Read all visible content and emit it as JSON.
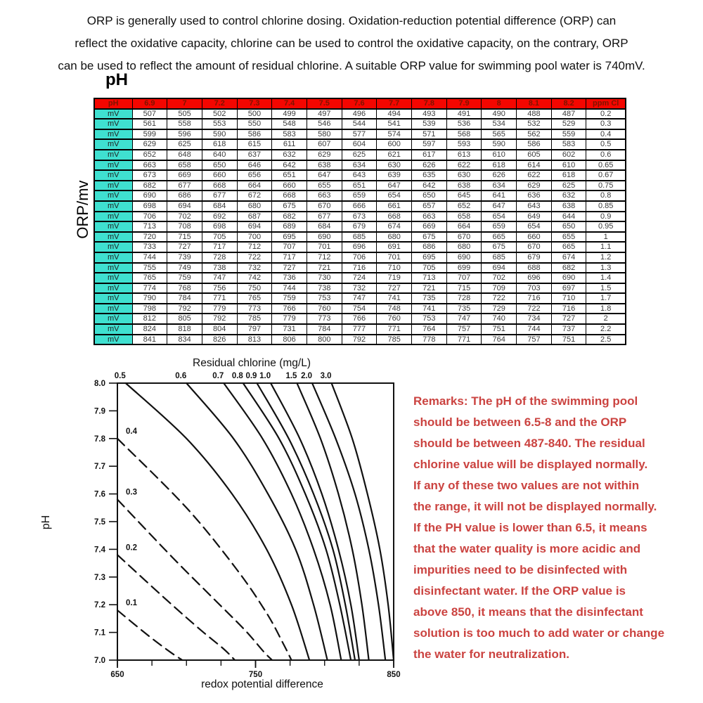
{
  "intro": {
    "lines": [
      "ORP is generally used to control chlorine dosing. Oxidation-reduction potential difference (ORP) can",
      "reflect the oxidative capacity, chlorine can be used to control the oxidative capacity, on the contrary, ORP",
      "can be used to reflect the amount of residual chlorine. A suitable ORP value for swimming pool water is 740mV."
    ]
  },
  "table": {
    "corner_label": "pH",
    "side_label": "ORP/mv",
    "row_label": "mV",
    "header": [
      "pH",
      "6.9",
      "7",
      "7.2",
      "7.3",
      "7.4",
      "7.5",
      "7.6",
      "7.7",
      "7.8",
      "7.9",
      "8",
      "8.1",
      "8.2",
      "ppm Cl"
    ],
    "rows": [
      {
        "values": [
          "507",
          "505",
          "502",
          "500",
          "499",
          "497",
          "496",
          "494",
          "493",
          "491",
          "490",
          "488",
          "487"
        ],
        "ppm": "0.2"
      },
      {
        "values": [
          "561",
          "558",
          "553",
          "550",
          "548",
          "546",
          "544",
          "541",
          "539",
          "536",
          "534",
          "532",
          "529"
        ],
        "ppm": "0.3"
      },
      {
        "values": [
          "599",
          "596",
          "590",
          "586",
          "583",
          "580",
          "577",
          "574",
          "571",
          "568",
          "565",
          "562",
          "559"
        ],
        "ppm": "0.4"
      },
      {
        "values": [
          "629",
          "625",
          "618",
          "615",
          "611",
          "607",
          "604",
          "600",
          "597",
          "593",
          "590",
          "586",
          "583"
        ],
        "ppm": "0.5"
      },
      {
        "values": [
          "652",
          "648",
          "640",
          "637",
          "632",
          "629",
          "625",
          "621",
          "617",
          "613",
          "610",
          "605",
          "602"
        ],
        "ppm": "0.6"
      },
      {
        "values": [
          "663",
          "658",
          "650",
          "646",
          "642",
          "638",
          "634",
          "630",
          "626",
          "622",
          "618",
          "614",
          "610"
        ],
        "ppm": "0.65"
      },
      {
        "values": [
          "673",
          "669",
          "660",
          "656",
          "651",
          "647",
          "643",
          "639",
          "635",
          "630",
          "626",
          "622",
          "618"
        ],
        "ppm": "0.67"
      },
      {
        "values": [
          "682",
          "677",
          "668",
          "664",
          "660",
          "655",
          "651",
          "647",
          "642",
          "638",
          "634",
          "629",
          "625"
        ],
        "ppm": "0.75"
      },
      {
        "values": [
          "690",
          "686",
          "677",
          "672",
          "668",
          "663",
          "659",
          "654",
          "650",
          "645",
          "641",
          "636",
          "632"
        ],
        "ppm": "0.8"
      },
      {
        "values": [
          "698",
          "694",
          "684",
          "680",
          "675",
          "670",
          "666",
          "661",
          "657",
          "652",
          "647",
          "643",
          "638"
        ],
        "ppm": "0.85"
      },
      {
        "values": [
          "706",
          "702",
          "692",
          "687",
          "682",
          "677",
          "673",
          "668",
          "663",
          "658",
          "654",
          "649",
          "644"
        ],
        "ppm": "0.9"
      },
      {
        "values": [
          "713",
          "708",
          "698",
          "694",
          "689",
          "684",
          "679",
          "674",
          "669",
          "664",
          "659",
          "654",
          "650"
        ],
        "ppm": "0.95"
      },
      {
        "values": [
          "720",
          "715",
          "705",
          "700",
          "695",
          "690",
          "685",
          "680",
          "675",
          "670",
          "665",
          "660",
          "655"
        ],
        "ppm": "1"
      },
      {
        "values": [
          "733",
          "727",
          "717",
          "712",
          "707",
          "701",
          "696",
          "691",
          "686",
          "680",
          "675",
          "670",
          "665"
        ],
        "ppm": "1.1"
      },
      {
        "values": [
          "744",
          "739",
          "728",
          "722",
          "717",
          "712",
          "706",
          "701",
          "695",
          "690",
          "685",
          "679",
          "674"
        ],
        "ppm": "1.2"
      },
      {
        "values": [
          "755",
          "749",
          "738",
          "732",
          "727",
          "721",
          "716",
          "710",
          "705",
          "699",
          "694",
          "688",
          "682"
        ],
        "ppm": "1.3"
      },
      {
        "values": [
          "765",
          "759",
          "747",
          "742",
          "736",
          "730",
          "724",
          "719",
          "713",
          "707",
          "702",
          "696",
          "690"
        ],
        "ppm": "1.4"
      },
      {
        "values": [
          "774",
          "768",
          "756",
          "750",
          "744",
          "738",
          "732",
          "727",
          "721",
          "715",
          "709",
          "703",
          "697"
        ],
        "ppm": "1.5"
      },
      {
        "values": [
          "790",
          "784",
          "771",
          "765",
          "759",
          "753",
          "747",
          "741",
          "735",
          "728",
          "722",
          "716",
          "710"
        ],
        "ppm": "1.7"
      },
      {
        "values": [
          "798",
          "792",
          "779",
          "773",
          "766",
          "760",
          "754",
          "748",
          "741",
          "735",
          "729",
          "722",
          "716"
        ],
        "ppm": "1.8"
      },
      {
        "values": [
          "812",
          "805",
          "792",
          "785",
          "779",
          "773",
          "766",
          "760",
          "753",
          "747",
          "740",
          "734",
          "727"
        ],
        "ppm": "2"
      },
      {
        "values": [
          "824",
          "818",
          "804",
          "797",
          "731",
          "784",
          "777",
          "771",
          "764",
          "757",
          "751",
          "744",
          "737"
        ],
        "ppm": "2.2"
      },
      {
        "values": [
          "841",
          "834",
          "826",
          "813",
          "806",
          "800",
          "792",
          "785",
          "778",
          "771",
          "764",
          "757",
          "751"
        ],
        "ppm": "2.5"
      }
    ]
  },
  "chart_data": {
    "type": "line",
    "title": "Residual chlorine (mg/L)",
    "xlabel": "redox potential difference",
    "ylabel": "pH",
    "xlim": [
      650,
      850
    ],
    "ylim": [
      7.0,
      8.0
    ],
    "x_tick_labels": [
      "650",
      "750",
      "850"
    ],
    "x_major_ticks": [
      650,
      750,
      850
    ],
    "x_minor_step": 25,
    "y_ticks": [
      "8.0",
      "7.9",
      "7.8",
      "7.7",
      "7.6",
      "7.5",
      "7.4",
      "7.3",
      "7.2",
      "7.1",
      "7.0"
    ],
    "grid": false,
    "legend": "curve labels placed at line starts (top edge for 0.5-3.0, left edge for 0.1-0.4)",
    "series": [
      {
        "name": "0.1",
        "style": "dashed",
        "label_side": "left",
        "points": [
          [
            650,
            7.18
          ],
          [
            672,
            7.09
          ],
          [
            688,
            7.03
          ],
          [
            697,
            7.0
          ]
        ]
      },
      {
        "name": "0.2",
        "style": "dashed",
        "label_side": "left",
        "points": [
          [
            650,
            7.38
          ],
          [
            685,
            7.22
          ],
          [
            710,
            7.11
          ],
          [
            727,
            7.04
          ],
          [
            735,
            7.0
          ]
        ]
      },
      {
        "name": "0.3",
        "style": "dashed",
        "label_side": "left",
        "points": [
          [
            650,
            7.58
          ],
          [
            690,
            7.37
          ],
          [
            720,
            7.22
          ],
          [
            742,
            7.11
          ],
          [
            756,
            7.03
          ],
          [
            762,
            7.0
          ]
        ]
      },
      {
        "name": "0.4",
        "style": "dashed",
        "label_side": "left",
        "points": [
          [
            650,
            7.8
          ],
          [
            700,
            7.55
          ],
          [
            736,
            7.33
          ],
          [
            758,
            7.17
          ],
          [
            770,
            7.06
          ],
          [
            776,
            7.0
          ]
        ]
      },
      {
        "name": "0.5",
        "style": "solid",
        "label_side": "top",
        "points": [
          [
            656,
            8.0
          ],
          [
            700,
            7.8
          ],
          [
            733,
            7.6
          ],
          [
            758,
            7.4
          ],
          [
            776,
            7.2
          ],
          [
            789,
            7.0
          ]
        ]
      },
      {
        "name": "0.6",
        "style": "solid",
        "label_side": "top",
        "points": [
          [
            700,
            8.0
          ],
          [
            734,
            7.8
          ],
          [
            759,
            7.6
          ],
          [
            779,
            7.4
          ],
          [
            792,
            7.2
          ],
          [
            802,
            7.0
          ]
        ]
      },
      {
        "name": "0.7",
        "style": "solid",
        "label_side": "top",
        "points": [
          [
            727,
            8.0
          ],
          [
            755,
            7.8
          ],
          [
            776,
            7.6
          ],
          [
            792,
            7.4
          ],
          [
            804,
            7.2
          ],
          [
            812,
            7.0
          ]
        ]
      },
      {
        "name": "0.8",
        "style": "solid",
        "label_side": "top",
        "points": [
          [
            741,
            8.0
          ],
          [
            767,
            7.8
          ],
          [
            786,
            7.6
          ],
          [
            801,
            7.4
          ],
          [
            811,
            7.2
          ],
          [
            819,
            7.0
          ]
        ]
      },
      {
        "name": "0.9",
        "style": "solid",
        "label_side": "top",
        "points": [
          [
            751,
            8.0
          ],
          [
            774,
            7.8
          ],
          [
            792,
            7.6
          ],
          [
            806,
            7.4
          ],
          [
            815,
            7.2
          ],
          [
            822,
            7.0
          ]
        ]
      },
      {
        "name": "1.0",
        "style": "solid",
        "label_side": "top",
        "points": [
          [
            761,
            8.0
          ],
          [
            782,
            7.8
          ],
          [
            798,
            7.6
          ],
          [
            810,
            7.4
          ],
          [
            819,
            7.2
          ],
          [
            825,
            7.0
          ]
        ]
      },
      {
        "name": "1.5",
        "style": "solid",
        "label_side": "top",
        "points": [
          [
            780,
            8.0
          ],
          [
            797,
            7.8
          ],
          [
            810,
            7.6
          ],
          [
            820,
            7.4
          ],
          [
            827,
            7.2
          ],
          [
            832,
            7.0
          ]
        ]
      },
      {
        "name": "2.0",
        "style": "solid",
        "label_side": "top",
        "points": [
          [
            791,
            8.0
          ],
          [
            808,
            7.8
          ],
          [
            822,
            7.6
          ],
          [
            832,
            7.4
          ],
          [
            839,
            7.2
          ],
          [
            844,
            7.0
          ]
        ]
      },
      {
        "name": "3.0",
        "style": "solid",
        "label_side": "top",
        "points": [
          [
            805,
            8.0
          ],
          [
            820,
            7.8
          ],
          [
            831,
            7.6
          ],
          [
            840,
            7.4
          ],
          [
            846,
            7.2
          ],
          [
            850,
            7.0
          ]
        ]
      }
    ]
  },
  "remarks": {
    "lines": [
      "Remarks: The pH of the swimming pool",
      "should be between 6.5-8 and the ORP",
      "should be between 487-840. The residual",
      "chlorine value will be displayed normally.",
      "If any of these two values are not within",
      "the range, it will not be displayed normally.",
      "If the PH value is lower than 6.5, it means",
      "that the water quality is more acidic and",
      "impurities need to be disinfected with",
      "disinfectant water. If the ORP value is",
      "above 850, it means that the disinfectant",
      "solution is too much to add water or change",
      "the water for neutralization."
    ]
  },
  "colors": {
    "table_header_bg": "#f40600",
    "table_header_text": "#7e1400",
    "mv_cell_bg": "#3fe0d0",
    "remark_text": "#cb4340",
    "line_color": "#111111"
  }
}
